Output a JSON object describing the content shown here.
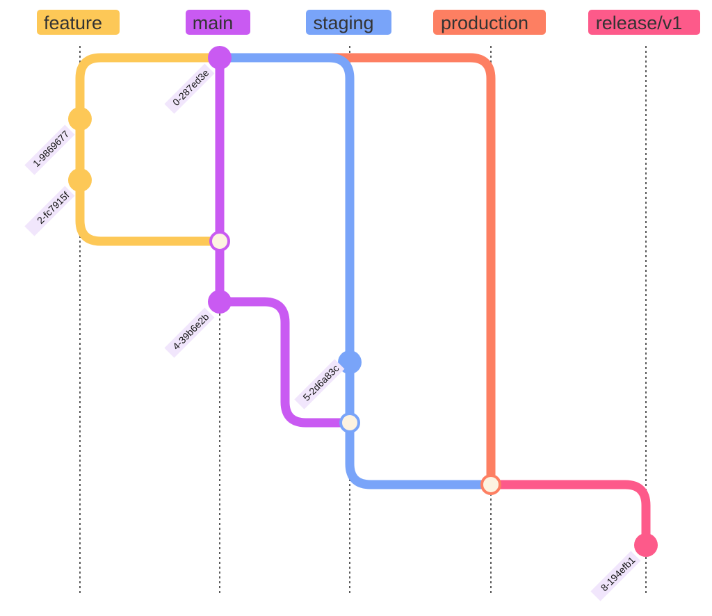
{
  "branches": [
    {
      "key": "feature",
      "name": "feature",
      "color": "#FDC857"
    },
    {
      "key": "main",
      "name": "main",
      "color": "#C95AF2"
    },
    {
      "key": "staging",
      "name": "staging",
      "color": "#79A4F9"
    },
    {
      "key": "production",
      "name": "production",
      "color": "#FD7F62"
    },
    {
      "key": "release",
      "name": "release/v1",
      "color": "#FD5A8A"
    }
  ],
  "commits": [
    {
      "id": "0-287ed3e",
      "branch": "main",
      "type": "normal"
    },
    {
      "id": "1-9869677",
      "branch": "feature",
      "type": "normal"
    },
    {
      "id": "2-fc7915f",
      "branch": "feature",
      "type": "normal"
    },
    {
      "id": "",
      "branch": "main",
      "type": "merge"
    },
    {
      "id": "4-39b6e2b",
      "branch": "main",
      "type": "normal"
    },
    {
      "id": "",
      "branch": "staging",
      "type": "normal"
    },
    {
      "id": "5-2d6a83c",
      "branch": "staging",
      "type": "merge"
    },
    {
      "id": "",
      "branch": "production",
      "type": "merge"
    },
    {
      "id": "8-194efb1",
      "branch": "release",
      "type": "normal"
    }
  ],
  "colors": {
    "merge_fill": "#FDF3E1",
    "label_bg": "#F1E6FC",
    "lane_line": "#222222"
  }
}
